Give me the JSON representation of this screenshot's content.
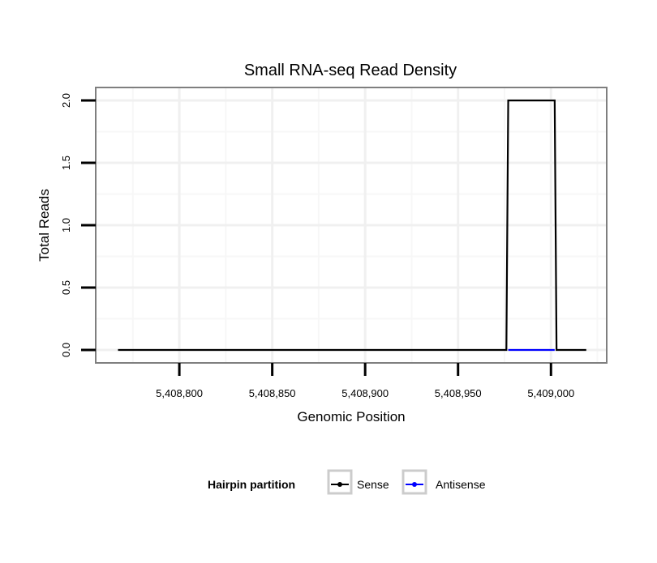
{
  "chart_data": {
    "type": "line",
    "title": "Small RNA-seq Read Density",
    "xlabel": "Genomic Position",
    "ylabel": "Total Reads",
    "xlim": [
      5408755,
      5409030
    ],
    "ylim": [
      -0.104,
      2.104
    ],
    "x_ticks": [
      5408800,
      5408850,
      5408900,
      5408950,
      5409000
    ],
    "x_tick_labels": [
      "5,408,800",
      "5,408,850",
      "5,408,900",
      "5,408,950",
      "5,409,000"
    ],
    "y_ticks": [
      0,
      0.5,
      1,
      1.5,
      2
    ],
    "y_tick_labels": [
      "0.0",
      "0.5",
      "1.0",
      "1.5",
      "2.0"
    ],
    "grid": true,
    "legend": {
      "title": "Hairpin partition",
      "placement": "bottom",
      "entries": [
        "Sense",
        "Antisense"
      ]
    },
    "series": [
      {
        "name": "Sense",
        "color": "#000000",
        "x": [
          5408767,
          5408976,
          5408977,
          5409002,
          5409003,
          5409019
        ],
        "y": [
          0,
          0,
          2,
          2,
          0,
          0
        ]
      },
      {
        "name": "Antisense",
        "color": "#0000ff",
        "x": [
          5408977,
          5409002
        ],
        "y": [
          0,
          0
        ]
      }
    ]
  }
}
